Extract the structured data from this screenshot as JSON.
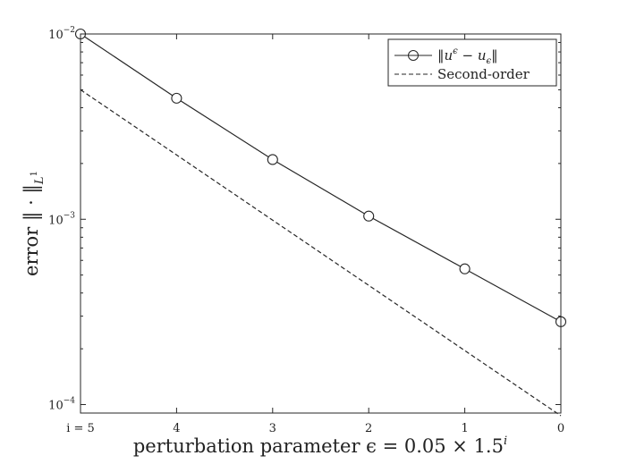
{
  "chart_data": {
    "type": "line",
    "title": "",
    "xlabel": "perturbation parameter ϵ = 0.05 × 1.5ⁱ",
    "xlabel_parts": {
      "main": "perturbation parameter ϵ = 0.05 × 1.5",
      "sup": "i"
    },
    "ylabel": "error ‖ · ‖L¹",
    "ylabel_parts": {
      "main": "error ‖ · ‖",
      "sub": "L",
      "subsup": "1"
    },
    "y_scale": "log",
    "ylim": [
      9e-05,
      0.01
    ],
    "xlim": [
      5,
      0
    ],
    "x_direction": "decreasing",
    "x_ticks": [
      5,
      4,
      3,
      2,
      1,
      0
    ],
    "x_tick_labels": [
      "i = 5",
      "4",
      "3",
      "2",
      "1",
      "0"
    ],
    "y_ticks": [
      0.0001,
      0.001,
      0.01
    ],
    "y_tick_labels": [
      {
        "base": "10",
        "exp": "−4"
      },
      {
        "base": "10",
        "exp": "−3"
      },
      {
        "base": "10",
        "exp": "−2"
      }
    ],
    "grid": false,
    "legend_position": "top-right",
    "series": [
      {
        "name": "‖uᵋ − uᵋ‖",
        "name_parts": {
          "a": "‖u",
          "a_sup": "ϵ",
          "b": " − u",
          "b_sub": "ϵ",
          "c": "‖"
        },
        "style": "solid",
        "marker": "circle",
        "x": [
          5,
          4,
          3,
          2,
          1,
          0
        ],
        "y": [
          0.01,
          0.0045,
          0.0021,
          0.00104,
          0.00054,
          0.00028
        ]
      },
      {
        "name": "Second-order",
        "style": "dashed",
        "marker": "none",
        "x": [
          5,
          0
        ],
        "y": [
          0.005,
          8.7e-05
        ]
      }
    ],
    "colors": {
      "line": "#262626",
      "axis": "#262626"
    }
  }
}
